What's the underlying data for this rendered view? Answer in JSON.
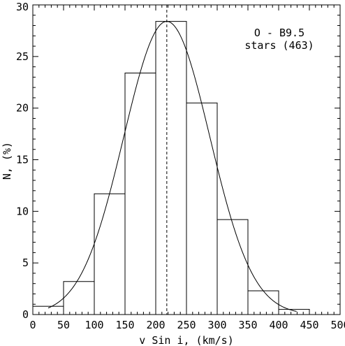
{
  "chart_data": {
    "type": "bar",
    "xlabel": "v Sin i, (km/s)",
    "ylabel": "N, (%)",
    "xlim": [
      0,
      500
    ],
    "ylim": [
      0,
      30
    ],
    "x_ticks": [
      "0",
      "50",
      "100",
      "150",
      "200",
      "250",
      "300",
      "350",
      "400",
      "450",
      "500"
    ],
    "y_ticks": [
      "0",
      "5",
      "10",
      "15",
      "20",
      "25",
      "30"
    ],
    "bin_width": 50,
    "bins": [
      {
        "x0": 0,
        "x1": 50,
        "value": 0.8
      },
      {
        "x0": 50,
        "x1": 100,
        "value": 3.2
      },
      {
        "x0": 100,
        "x1": 150,
        "value": 11.7
      },
      {
        "x0": 150,
        "x1": 200,
        "value": 23.4
      },
      {
        "x0": 200,
        "x1": 250,
        "value": 28.4
      },
      {
        "x0": 250,
        "x1": 300,
        "value": 20.5
      },
      {
        "x0": 300,
        "x1": 350,
        "value": 9.2
      },
      {
        "x0": 350,
        "x1": 400,
        "value": 2.3
      },
      {
        "x0": 400,
        "x1": 450,
        "value": 0.5
      }
    ],
    "gaussian_fit": {
      "mean": 218,
      "sigma": 70,
      "peak": 28.4,
      "x_range": [
        25,
        430
      ]
    },
    "mean_line": {
      "x": 218,
      "style": "dashed"
    },
    "annotations": [
      "O - B9.5",
      "stars (463)"
    ],
    "grid": false
  }
}
